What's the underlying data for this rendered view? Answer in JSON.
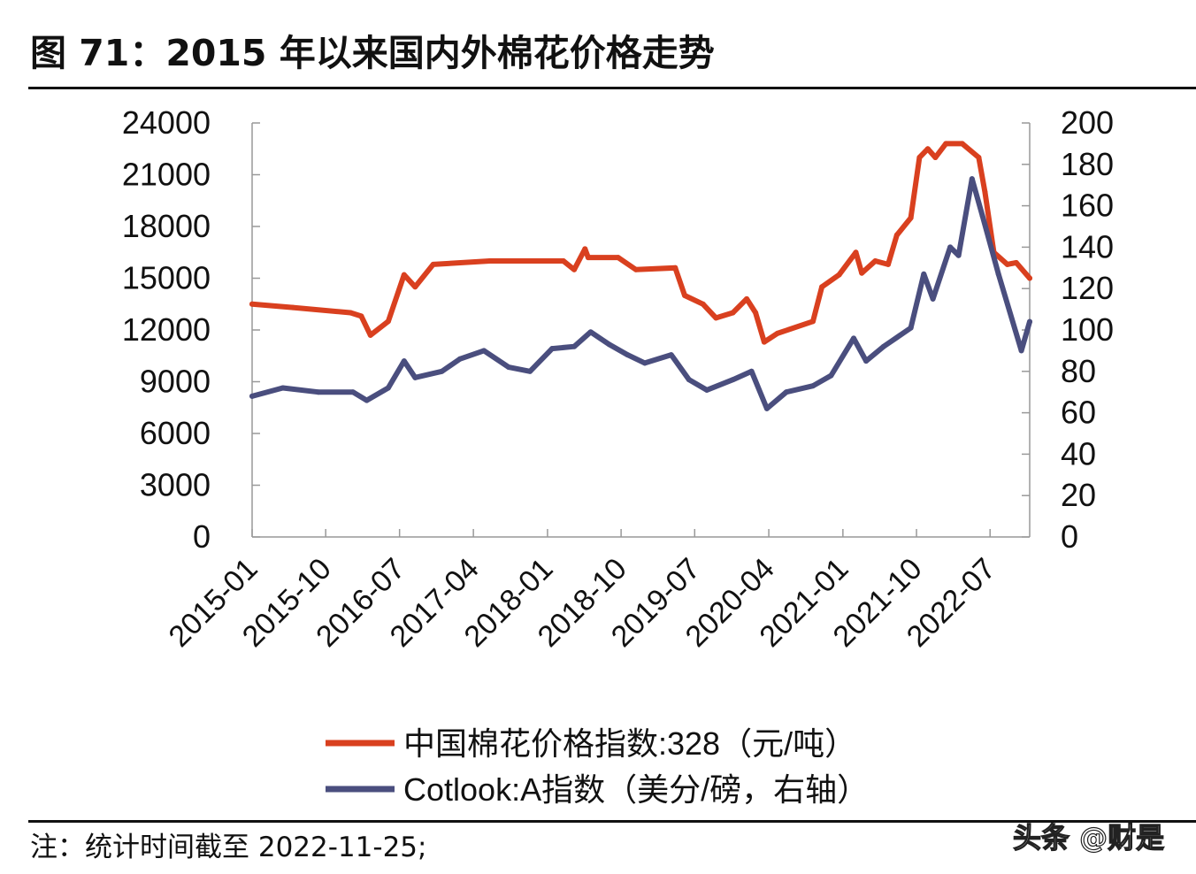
{
  "title": "图 71：2015 年以来国内外棉花价格走势",
  "note": "注：统计时间截至 2022-11-25;",
  "watermark": "头条 @财是",
  "chart_data": {
    "type": "line",
    "title": "",
    "x_type": "date",
    "xlim": [
      "2015-01-01",
      "2022-11-25"
    ],
    "x_tick_labels": [
      "2015-01",
      "2015-10",
      "2016-07",
      "2017-04",
      "2018-01",
      "2018-10",
      "2019-07",
      "2020-04",
      "2021-01",
      "2021-10",
      "2022-07"
    ],
    "y_left": {
      "ylim": [
        0,
        24000
      ],
      "ticks": [
        "0",
        "3000",
        "6000",
        "9000",
        "12000",
        "15000",
        "18000",
        "21000",
        "24000"
      ]
    },
    "y_right": {
      "ylim": [
        0,
        200
      ],
      "ticks": [
        "0",
        "20",
        "40",
        "60",
        "80",
        "100",
        "120",
        "140",
        "160",
        "180",
        "200"
      ]
    },
    "grid": false,
    "legend_position": "bottom",
    "series": [
      {
        "name": "中国棉花价格指数:328（元/吨）",
        "axis": "left",
        "color": "#d9401f",
        "points": [
          [
            "2015-01-01",
            13500
          ],
          [
            "2015-06-01",
            13300
          ],
          [
            "2016-01-01",
            13000
          ],
          [
            "2016-02-10",
            12800
          ],
          [
            "2016-03-15",
            11700
          ],
          [
            "2016-05-20",
            12500
          ],
          [
            "2016-07-18",
            15200
          ],
          [
            "2016-08-28",
            14500
          ],
          [
            "2016-11-03",
            15800
          ],
          [
            "2017-06-01",
            16000
          ],
          [
            "2018-03-01",
            16000
          ],
          [
            "2018-04-10",
            15500
          ],
          [
            "2018-05-20",
            16700
          ],
          [
            "2018-06-01",
            16200
          ],
          [
            "2018-09-20",
            16200
          ],
          [
            "2018-11-25",
            15500
          ],
          [
            "2019-04-20",
            15600
          ],
          [
            "2019-05-25",
            14000
          ],
          [
            "2019-08-01",
            13500
          ],
          [
            "2019-09-18",
            12700
          ],
          [
            "2019-11-20",
            13000
          ],
          [
            "2020-01-10",
            13800
          ],
          [
            "2020-02-12",
            13000
          ],
          [
            "2020-03-15",
            11300
          ],
          [
            "2020-05-03",
            11800
          ],
          [
            "2020-09-12",
            12500
          ],
          [
            "2020-10-15",
            14500
          ],
          [
            "2020-12-18",
            15200
          ],
          [
            "2021-02-18",
            16500
          ],
          [
            "2021-03-12",
            15300
          ],
          [
            "2021-05-01",
            16000
          ],
          [
            "2021-06-18",
            15800
          ],
          [
            "2021-07-20",
            17500
          ],
          [
            "2021-09-10",
            18500
          ],
          [
            "2021-10-12",
            22000
          ],
          [
            "2021-11-12",
            22500
          ],
          [
            "2021-12-10",
            22000
          ],
          [
            "2022-01-18",
            22800
          ],
          [
            "2022-03-20",
            22800
          ],
          [
            "2022-05-20",
            22000
          ],
          [
            "2022-06-12",
            20000
          ],
          [
            "2022-07-15",
            16500
          ],
          [
            "2022-09-03",
            15800
          ],
          [
            "2022-10-06",
            15900
          ],
          [
            "2022-11-25",
            15000
          ]
        ]
      },
      {
        "name": "Cotlook:A指数（美分/磅，右轴）",
        "axis": "right",
        "color": "#4a4e7e",
        "points": [
          [
            "2015-01-01",
            68
          ],
          [
            "2015-04-25",
            72
          ],
          [
            "2015-09-03",
            70
          ],
          [
            "2016-01-10",
            70
          ],
          [
            "2016-03-01",
            66
          ],
          [
            "2016-05-20",
            72
          ],
          [
            "2016-07-18",
            85
          ],
          [
            "2016-08-28",
            77
          ],
          [
            "2016-12-05",
            80
          ],
          [
            "2017-02-10",
            86
          ],
          [
            "2017-05-10",
            90
          ],
          [
            "2017-08-10",
            82
          ],
          [
            "2017-10-28",
            80
          ],
          [
            "2018-01-18",
            91
          ],
          [
            "2018-04-10",
            92
          ],
          [
            "2018-06-10",
            99
          ],
          [
            "2018-08-18",
            93
          ],
          [
            "2018-10-25",
            88
          ],
          [
            "2018-12-28",
            84
          ],
          [
            "2019-04-05",
            88
          ],
          [
            "2019-06-10",
            76
          ],
          [
            "2019-08-15",
            71
          ],
          [
            "2019-11-20",
            76
          ],
          [
            "2020-01-28",
            80
          ],
          [
            "2020-03-25",
            62
          ],
          [
            "2020-06-05",
            70
          ],
          [
            "2020-09-12",
            73
          ],
          [
            "2020-11-18",
            78
          ],
          [
            "2021-02-10",
            96
          ],
          [
            "2021-03-28",
            85
          ],
          [
            "2021-06-01",
            92
          ],
          [
            "2021-09-10",
            101
          ],
          [
            "2021-10-28",
            127
          ],
          [
            "2021-12-01",
            115
          ],
          [
            "2022-02-03",
            140
          ],
          [
            "2022-03-06",
            136
          ],
          [
            "2022-04-25",
            173
          ],
          [
            "2022-06-03",
            155
          ],
          [
            "2022-08-01",
            127
          ],
          [
            "2022-10-25",
            90
          ],
          [
            "2022-11-25",
            104
          ]
        ]
      }
    ]
  }
}
